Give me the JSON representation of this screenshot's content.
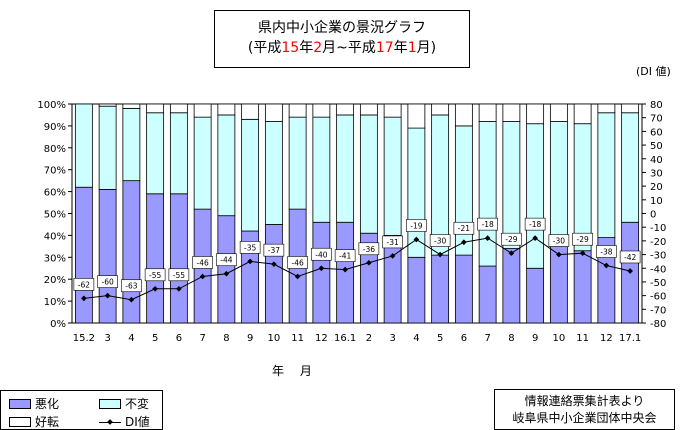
{
  "title": {
    "line1": "県内中小企業の景況グラフ",
    "line2_parts": [
      {
        "text": "(平成",
        "color": "#000000"
      },
      {
        "text": "15",
        "color": "#ff0000"
      },
      {
        "text": "年",
        "color": "#000000"
      },
      {
        "text": "2",
        "color": "#ff0000"
      },
      {
        "text": "月~平成",
        "color": "#000000"
      },
      {
        "text": "17",
        "color": "#ff0000"
      },
      {
        "text": "年",
        "color": "#000000"
      },
      {
        "text": "1",
        "color": "#ff0000"
      },
      {
        "text": "月)",
        "color": "#000000"
      }
    ]
  },
  "right_axis_unit": "(DI 値)",
  "xlabel": "年 月",
  "legend": {
    "worse": "悪化",
    "unchanged": "不変",
    "better": "好転",
    "di": "DI値"
  },
  "source": {
    "line1": "情報連絡票集計表より",
    "line2": "岐阜県中小企業団体中央会"
  },
  "colors": {
    "worse": "#9999ff",
    "unchanged": "#ccffff",
    "better": "#ffffff",
    "line": "#000000"
  },
  "chart_data": {
    "type": "bar",
    "stacked": true,
    "categories": [
      "15.2",
      "3",
      "4",
      "5",
      "6",
      "7",
      "8",
      "9",
      "10",
      "11",
      "12",
      "16.1",
      "2",
      "3",
      "4",
      "5",
      "6",
      "7",
      "8",
      "9",
      "10",
      "11",
      "12",
      "17.1"
    ],
    "series": [
      {
        "name": "悪化",
        "axis": "left",
        "values": [
          62,
          61,
          65,
          59,
          59,
          52,
          49,
          42,
          45,
          52,
          46,
          46,
          41,
          40,
          30,
          31,
          31,
          26,
          34,
          25,
          35,
          33,
          39,
          46
        ]
      },
      {
        "name": "不変",
        "axis": "left",
        "values": [
          38,
          38,
          33,
          37,
          37,
          42,
          46,
          51,
          47,
          42,
          48,
          49,
          54,
          54,
          59,
          64,
          59,
          66,
          58,
          66,
          57,
          58,
          57,
          50
        ]
      },
      {
        "name": "好転",
        "axis": "left",
        "values": [
          0,
          1,
          2,
          4,
          4,
          6,
          5,
          7,
          8,
          6,
          6,
          5,
          5,
          6,
          11,
          5,
          10,
          8,
          8,
          9,
          8,
          9,
          4,
          4
        ]
      },
      {
        "name": "DI値",
        "type": "line",
        "axis": "right",
        "values": [
          -62,
          -60,
          -63,
          -55,
          -55,
          -46,
          -44,
          -35,
          -37,
          -46,
          -40,
          -41,
          -36,
          -31,
          -19,
          -30,
          -21,
          -18,
          -29,
          -18,
          -30,
          -29,
          -38,
          -42
        ]
      }
    ],
    "left_axis": {
      "min": 0,
      "max": 100,
      "step": 10,
      "format": "percent"
    },
    "right_axis": {
      "min": -80,
      "max": 80,
      "step": 10
    },
    "legend_position": "bottom-left"
  }
}
